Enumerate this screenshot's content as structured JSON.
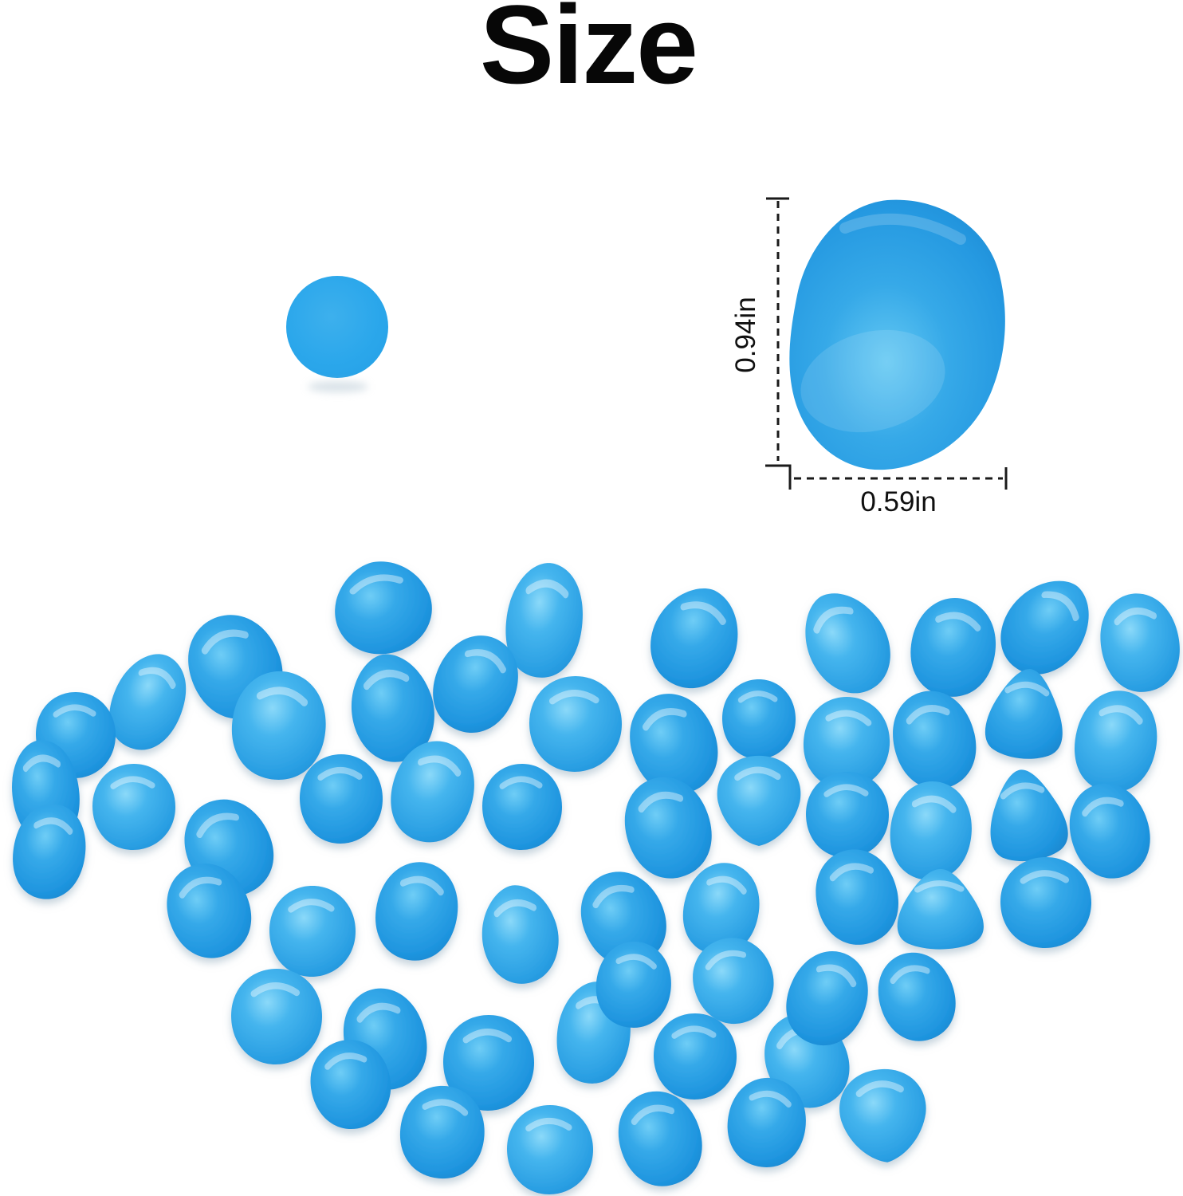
{
  "page": {
    "title": "Size",
    "background": "#ffffff"
  },
  "size_figure": {
    "height_label": "0.94in",
    "width_label": "0.59in",
    "line_color": "#1a1a1a",
    "pebble_color": "#2fa5e7"
  },
  "swatch_circle": {
    "color": "#2ba7eb"
  },
  "colors": {
    "accent_blue": "#2ba7eb",
    "pebble_highlight": "#8bd9f9",
    "pebble_dark_rim": "#1b89d1",
    "text_black": "#070707"
  },
  "pile": {
    "description": "pile-of-blue-glow-pebbles",
    "pebbles": [
      [
        2,
        480,
        762,
        64,
        58,
        -12,
        0
      ],
      [
        4,
        683,
        778,
        50,
        72,
        8,
        1
      ],
      [
        2,
        872,
        800,
        56,
        64,
        22,
        0
      ],
      [
        2,
        1062,
        806,
        52,
        66,
        -28,
        1
      ],
      [
        1,
        1196,
        812,
        54,
        62,
        14,
        0
      ],
      [
        2,
        1312,
        786,
        52,
        64,
        38,
        0
      ],
      [
        1,
        1430,
        806,
        50,
        62,
        -8,
        1
      ],
      [
        1,
        295,
        836,
        58,
        66,
        -20,
        0
      ],
      [
        4,
        186,
        880,
        46,
        62,
        24,
        1
      ],
      [
        0,
        95,
        922,
        50,
        54,
        0,
        0
      ],
      [
        4,
        57,
        992,
        44,
        64,
        -6,
        0
      ],
      [
        1,
        350,
        910,
        60,
        68,
        10,
        1
      ],
      [
        2,
        492,
        888,
        54,
        68,
        -10,
        0
      ],
      [
        1,
        597,
        858,
        52,
        62,
        26,
        0
      ],
      [
        0,
        722,
        908,
        58,
        60,
        0,
        1
      ],
      [
        1,
        845,
        933,
        54,
        64,
        -18,
        0
      ],
      [
        0,
        952,
        902,
        46,
        50,
        0,
        0
      ],
      [
        0,
        1062,
        932,
        54,
        58,
        8,
        1
      ],
      [
        1,
        1172,
        928,
        52,
        62,
        -12,
        0
      ],
      [
        3,
        1287,
        895,
        52,
        56,
        6,
        0
      ],
      [
        1,
        1400,
        930,
        52,
        64,
        14,
        1
      ],
      [
        0,
        168,
        1012,
        52,
        54,
        0,
        1
      ],
      [
        1,
        62,
        1068,
        46,
        60,
        12,
        0
      ],
      [
        1,
        287,
        1063,
        54,
        62,
        -24,
        0
      ],
      [
        0,
        428,
        1002,
        52,
        56,
        0,
        0
      ],
      [
        1,
        543,
        993,
        52,
        64,
        18,
        1
      ],
      [
        0,
        655,
        1012,
        50,
        54,
        0,
        0
      ],
      [
        1,
        838,
        1038,
        54,
        64,
        -14,
        0
      ],
      [
        5,
        952,
        1003,
        54,
        58,
        0,
        1
      ],
      [
        0,
        1063,
        1022,
        52,
        54,
        0,
        0
      ],
      [
        1,
        1168,
        1042,
        52,
        62,
        10,
        1
      ],
      [
        3,
        1288,
        1022,
        52,
        57,
        -8,
        0
      ],
      [
        1,
        1392,
        1042,
        50,
        60,
        -14,
        0
      ],
      [
        1,
        262,
        1142,
        52,
        60,
        -18,
        0
      ],
      [
        0,
        392,
        1168,
        54,
        57,
        0,
        1
      ],
      [
        1,
        523,
        1143,
        52,
        62,
        15,
        0
      ],
      [
        2,
        652,
        1172,
        50,
        62,
        -8,
        1
      ],
      [
        1,
        782,
        1152,
        52,
        60,
        -22,
        0
      ],
      [
        1,
        905,
        1140,
        48,
        58,
        16,
        1
      ],
      [
        1,
        1075,
        1125,
        52,
        60,
        -10,
        0
      ],
      [
        3,
        1180,
        1140,
        58,
        50,
        0,
        1
      ],
      [
        0,
        1312,
        1132,
        57,
        57,
        0,
        0
      ],
      [
        0,
        347,
        1275,
        57,
        60,
        0,
        1
      ],
      [
        1,
        483,
        1303,
        52,
        64,
        -12,
        0
      ],
      [
        0,
        613,
        1333,
        57,
        60,
        0,
        0
      ],
      [
        4,
        745,
        1295,
        48,
        64,
        8,
        1
      ],
      [
        0,
        872,
        1325,
        52,
        54,
        0,
        0
      ],
      [
        1,
        1012,
        1330,
        52,
        60,
        -20,
        1
      ],
      [
        1,
        1038,
        1252,
        50,
        60,
        25,
        0
      ],
      [
        1,
        1150,
        1250,
        48,
        56,
        -15,
        0
      ],
      [
        0,
        920,
        1230,
        50,
        54,
        -18,
        1
      ],
      [
        1,
        795,
        1235,
        48,
        54,
        10,
        0
      ],
      [
        0,
        440,
        1360,
        50,
        56,
        -10,
        0
      ],
      [
        1,
        555,
        1420,
        54,
        58,
        10,
        0
      ],
      [
        0,
        690,
        1442,
        54,
        56,
        0,
        1
      ],
      [
        1,
        828,
        1428,
        52,
        60,
        -15,
        0
      ],
      [
        1,
        962,
        1408,
        50,
        56,
        12,
        0
      ],
      [
        5,
        1108,
        1398,
        56,
        60,
        -5,
        1
      ]
    ]
  }
}
